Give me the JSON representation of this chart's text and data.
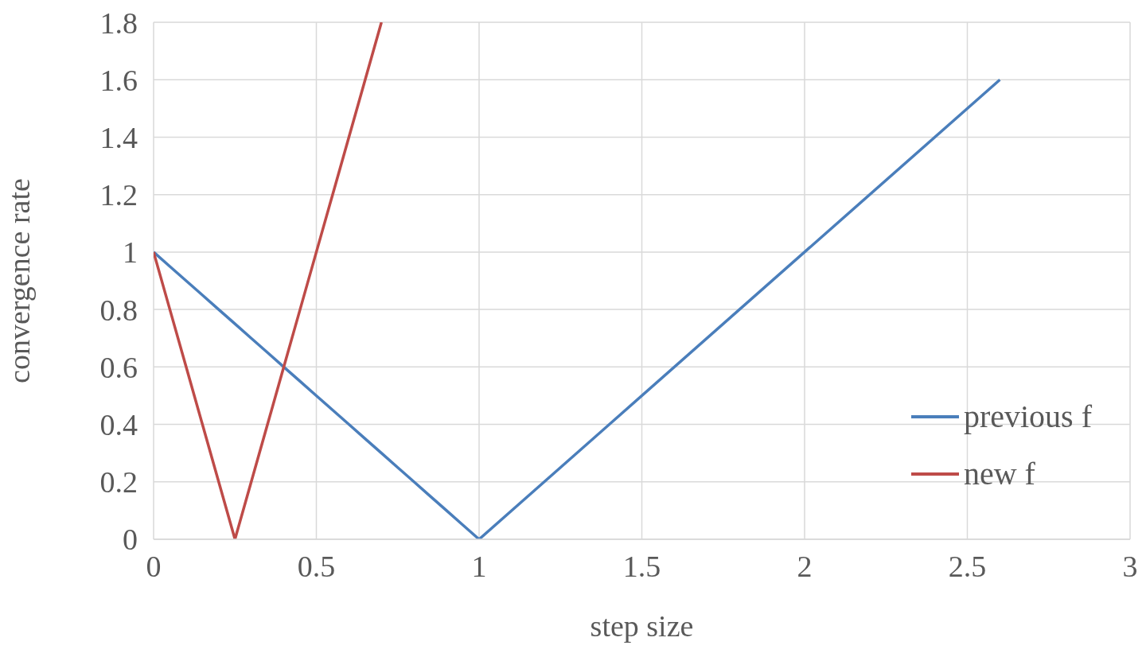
{
  "chart_data": {
    "type": "line",
    "xlabel": "step size",
    "ylabel": "convergence rate",
    "xlim": [
      0,
      3
    ],
    "xticks": [
      0,
      0.5,
      1,
      1.5,
      2,
      2.5,
      3
    ],
    "ylim": [
      0,
      1.8
    ],
    "yticks": [
      0,
      0.2,
      0.4,
      0.6,
      0.8,
      1,
      1.2,
      1.4,
      1.6,
      1.8
    ],
    "grid": true,
    "legend": "bottom right",
    "marker": "none",
    "line_style": "solid",
    "series": [
      {
        "name": "previous f",
        "color": "#4a7ebb",
        "x": [
          0,
          0.05,
          0.1,
          0.15,
          0.2,
          0.25,
          0.3,
          0.35,
          0.4,
          0.45,
          0.5,
          0.55,
          0.6,
          0.65,
          0.7,
          0.75,
          0.8,
          0.85,
          0.9,
          0.95,
          1,
          2.6
        ],
        "values": [
          1,
          0.95,
          0.9,
          0.85,
          0.8,
          0.75,
          0.7,
          0.65,
          0.6,
          0.55,
          0.5,
          0.45,
          0.4,
          0.35,
          0.3,
          0.25,
          0.2,
          0.15,
          0.1,
          0.05,
          0,
          1.6
        ]
      },
      {
        "name": "new f",
        "color": "#be4b48",
        "x": [
          0,
          0.05,
          0.1,
          0.15,
          0.2,
          0.25,
          0.3,
          0.35,
          0.4,
          0.45,
          0.5,
          0.55,
          0.6,
          0.65,
          0.7
        ],
        "values": [
          1,
          0.8,
          0.6,
          0.4,
          0.2,
          0,
          0.2,
          0.4,
          0.6,
          0.8,
          1,
          1.2,
          1.4,
          1.6,
          1.8
        ]
      }
    ]
  }
}
